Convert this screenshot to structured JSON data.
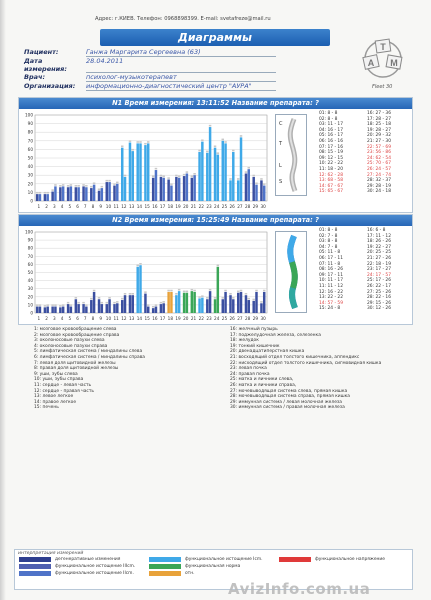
{
  "header": {
    "address": "Адрес: г.КИЕВ.  Телефон: 0968898399.  E-mail: svetafreze@mail.ru",
    "title": "Диаграммы"
  },
  "patient": {
    "fields": [
      {
        "label": "Пациент:",
        "value": "Ганжа Маргарита Сергеевна (63)"
      },
      {
        "label": "Дата измерения:",
        "value": "28.04.2011"
      },
      {
        "label": "Врач:",
        "value": "психолог-музыкотерапевт"
      },
      {
        "label": "Организация:",
        "value": "информационно-диагностический центр \"АУРА\""
      }
    ]
  },
  "logo": {
    "letters": [
      "А",
      "М",
      "Т"
    ],
    "caption": "Fleet 30"
  },
  "panels": [
    {
      "title": "N1 Время измерения: 13:11:52  Название препарата: ?",
      "spine_labels": [
        "C",
        "T",
        "L",
        "S"
      ],
      "values": [
        "01:  8 - 8",
        "16:  27 - 36",
        "02:  8 - 8",
        "17:  28 - 27",
        "03:  11 - 17",
        "18:  25 - 18",
        "04:  16 - 17",
        "19:  28 - 27",
        "05:  16 - 17",
        "20:  29 - 32",
        "06:  16 - 16",
        "21:  27 - 30",
        "07:  17 - 16",
        "22:  57 - 69",
        "08:  15 - 19",
        "23:  56 - 86",
        "09:  12 - 15",
        "24:  62 - 54",
        "10:  22 - 22",
        "25:  70 - 67",
        "11:  18 - 20",
        "26:  24 - 57",
        "12:  62 - 28",
        "27:  24 - 74",
        "13:  68 - 58",
        "28:  32 - 37",
        "14:  67 - 67",
        "29:  28 - 19",
        "15:  65 - 67",
        "30:  24 - 18"
      ],
      "colors": {
        "blue_dark": "#3b4fa0",
        "blue_mid": "#4f73c8",
        "cyan": "#3fa9e8",
        "grey": "#c8c8c8"
      },
      "chart_data": {
        "type": "bar",
        "categories": [
          "1",
          "2",
          "3",
          "4",
          "5",
          "6",
          "7",
          "8",
          "9",
          "10",
          "11",
          "12",
          "13",
          "14",
          "15",
          "16",
          "17",
          "18",
          "19",
          "20",
          "21",
          "22",
          "23",
          "24",
          "25",
          "26",
          "27",
          "28",
          "29",
          "30"
        ],
        "series": [
          {
            "values": [
              8,
              8,
              11,
              16,
              16,
              16,
              17,
              15,
              12,
              22,
              18,
              62,
              68,
              67,
              65,
              27,
              28,
              25,
              28,
              29,
              27,
              57,
              56,
              62,
              70,
              24,
              24,
              32,
              28,
              24
            ]
          },
          {
            "values": [
              8,
              8,
              17,
              17,
              17,
              16,
              16,
              19,
              15,
              22,
              20,
              28,
              58,
              67,
              67,
              36,
              27,
              18,
              27,
              32,
              30,
              69,
              86,
              54,
              67,
              57,
              74,
              37,
              19,
              18
            ]
          }
        ],
        "ylim": [
          0,
          100
        ],
        "yticks": [
          0,
          10,
          20,
          30,
          40,
          50,
          60,
          70,
          80,
          90,
          100
        ]
      }
    },
    {
      "title": "N2 Время измерения: 15:25:49  Название препарата: ?",
      "spine_labels": [
        "C",
        "T",
        "L",
        "S"
      ],
      "values": [
        "01:  8 - 8",
        "16:  6 - 8",
        "02:  7 - 8",
        "17:  11 - 12",
        "03:  8 - 8",
        "18:  26 - 26",
        "04:  7 - 8",
        "19:  22 - 27",
        "05:  11 - 8",
        "20:  25 - 25",
        "06:  17 - 11",
        "21:  27 - 26",
        "07:  11 - 8",
        "22:  18 - 19",
        "08:  16 - 26",
        "23:  17 - 27",
        "09:  17 - 11",
        "24:  17 - 57",
        "10:  11 - 17",
        "25:  17 - 26",
        "11:  11 - 12",
        "26:  22 - 17",
        "12:  16 - 22",
        "27:  25 - 26",
        "13:  22 - 22",
        "28:  22 - 16",
        "14:  57 - 59",
        "29:  15 - 26",
        "15:  24 - 8",
        "30:  12 - 26"
      ],
      "colors": {
        "blue_dark": "#3b4fa0",
        "cyan": "#3fa9e8",
        "green": "#3aa657",
        "orange": "#e8a23a",
        "grey": "#c8c8c8"
      },
      "chart_data": {
        "type": "bar",
        "categories": [
          "1",
          "2",
          "3",
          "4",
          "5",
          "6",
          "7",
          "8",
          "9",
          "10",
          "11",
          "12",
          "13",
          "14",
          "15",
          "16",
          "17",
          "18",
          "19",
          "20",
          "21",
          "22",
          "23",
          "24",
          "25",
          "26",
          "27",
          "28",
          "29",
          "30"
        ],
        "series": [
          {
            "values": [
              8,
              7,
              8,
              7,
              11,
              17,
              11,
              16,
              17,
              11,
              11,
              16,
              22,
              57,
              24,
              6,
              11,
              26,
              22,
              25,
              27,
              18,
              17,
              17,
              17,
              22,
              25,
              22,
              15,
              12
            ]
          },
          {
            "values": [
              8,
              8,
              8,
              8,
              8,
              11,
              8,
              26,
              11,
              17,
              12,
              22,
              22,
              59,
              8,
              8,
              12,
              26,
              27,
              25,
              26,
              19,
              27,
              57,
              26,
              17,
              26,
              16,
              26,
              26
            ]
          }
        ],
        "ylim": [
          0,
          100
        ],
        "yticks": [
          0,
          10,
          20,
          30,
          40,
          50,
          60,
          70,
          80,
          90,
          100
        ]
      }
    }
  ],
  "legend": [
    "1:    мозговое кровообращение слева",
    "16:   желчный пузырь",
    "2:    мозговое кровообращение справа",
    "17:   поджелудочная железа, селезенка",
    "3:    околоносовые пазухи слева",
    "18:   желудок",
    "4:    околоносовые пазухи справа",
    "19:   тонкий кишечник",
    "5:    лимфатическая система / миндалины слева",
    "20:   двенадцатиперстная кишка",
    "6:    лимфатическая система / миндалины справа",
    "21:   восходящий отдел толстого кишечника, аппендикс",
    "7:    левая доля щитовидной железы",
    "22:   нисходящий отдел толстого кишечника, сигмовидная кишка",
    "8:    правая доля щитовидной железы",
    "23:   левая почка",
    "9:    уши, зубы слева",
    "24:   правая почка",
    "10:   уши, зубы справа",
    "25:   матка и яичники слева,",
    "11:   сердце - левая часть",
    "26:   матка и яичники справа,",
    "12:   сердце - правая часть",
    "27:   мочевыводящая система слева, прямая кишка",
    "13:   левое легкое",
    "28:   мочевыводящая система справа, прямая кишка",
    "14:   правое легкое",
    "29:   иммунная система / левая молочная железа",
    "15:   печень",
    "30:   иммунная система / правая молочная железа"
  ],
  "interpretation": {
    "title": "интерпретация измерений",
    "items": [
      {
        "label": "дегенеративные изменения",
        "color": "#2f3f8f"
      },
      {
        "label": "функциональное истощение Icm.",
        "color": "#3fa9e8"
      },
      {
        "label": "функциональное напряжение",
        "color": "#e03a3a"
      },
      {
        "label": "функциональное истощение IIIcm.",
        "color": "#4f5fb0"
      },
      {
        "label": "функциональная норма",
        "color": "#3aa657"
      },
      {
        "label": "",
        "color": "#ffffff"
      },
      {
        "label": "функциональное истощение IIcm.",
        "color": "#4f73c8"
      },
      {
        "label": "отн.",
        "color": "#e8a23a"
      },
      {
        "label": "",
        "color": "#ffffff"
      }
    ]
  },
  "watermark": "AvizInfo.com.ua"
}
